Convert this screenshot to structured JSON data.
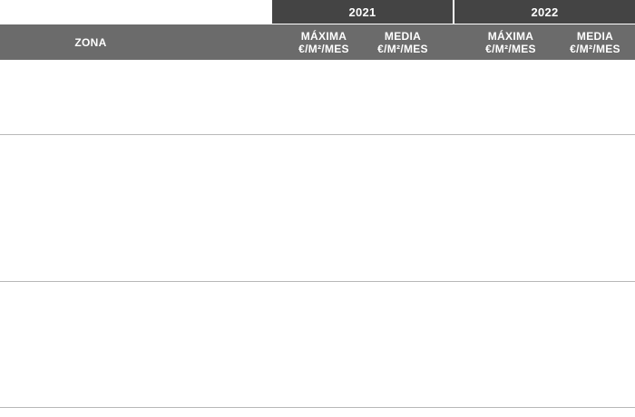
{
  "table": {
    "years": [
      "2021",
      "2022"
    ],
    "columns": {
      "zona": "ZONA",
      "max_2021": [
        "MÁXIMA",
        "€/M²/MES"
      ],
      "media_2021": [
        "MEDIA",
        "€/M²/MES"
      ],
      "max_2022": [
        "MÁXIMA",
        "€/M²/MES"
      ],
      "media_2022": [
        "MEDIA",
        "€/M²/MES"
      ]
    },
    "colors": {
      "year_header_bg": "#444444",
      "column_header_bg": "#6b6b6b",
      "header_text": "#ffffff",
      "row_divider": "#b8b8b8"
    }
  }
}
